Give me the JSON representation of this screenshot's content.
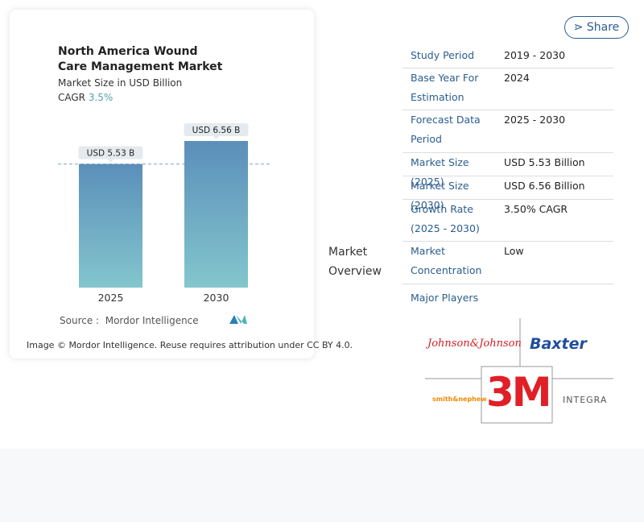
{
  "share": "Share",
  "chart_data": {
    "type": "bar",
    "title": "North America Wound Care Management Market",
    "subtitle": "Market Size in USD Billion",
    "cagr_label": "CAGR",
    "cagr_value": "3.5%",
    "categories": [
      "2025",
      "2030"
    ],
    "values": [
      5.53,
      6.56
    ],
    "value_labels": [
      "USD 5.53 B",
      "USD 6.56 B"
    ],
    "source_label": "Source :",
    "source": "Mordor Intelligence"
  },
  "attribution": "Image © Mordor Intelligence. Reuse requires attribution under CC BY 4.0.",
  "section_label": "Market Overview",
  "table": {
    "rows": [
      [
        "Study Period",
        "2019 - 2030"
      ],
      [
        "Base Year For Estimation",
        "2024"
      ],
      [
        "Forecast Data Period",
        "2025 - 2030"
      ],
      [
        "Market Size (2025)",
        "USD 5.53 Billion"
      ],
      [
        "Market Size (2030)",
        "USD 6.56 Billion"
      ],
      [
        "Growth Rate (2025 - 2030)",
        "3.50% CAGR"
      ],
      [
        "Market Concentration",
        "Low"
      ]
    ]
  },
  "major_players": {
    "label": "Major Players",
    "players": [
      "Johnson&Johnson",
      "Baxter",
      "3M",
      "smith&nephew",
      "INTEGRA"
    ]
  }
}
